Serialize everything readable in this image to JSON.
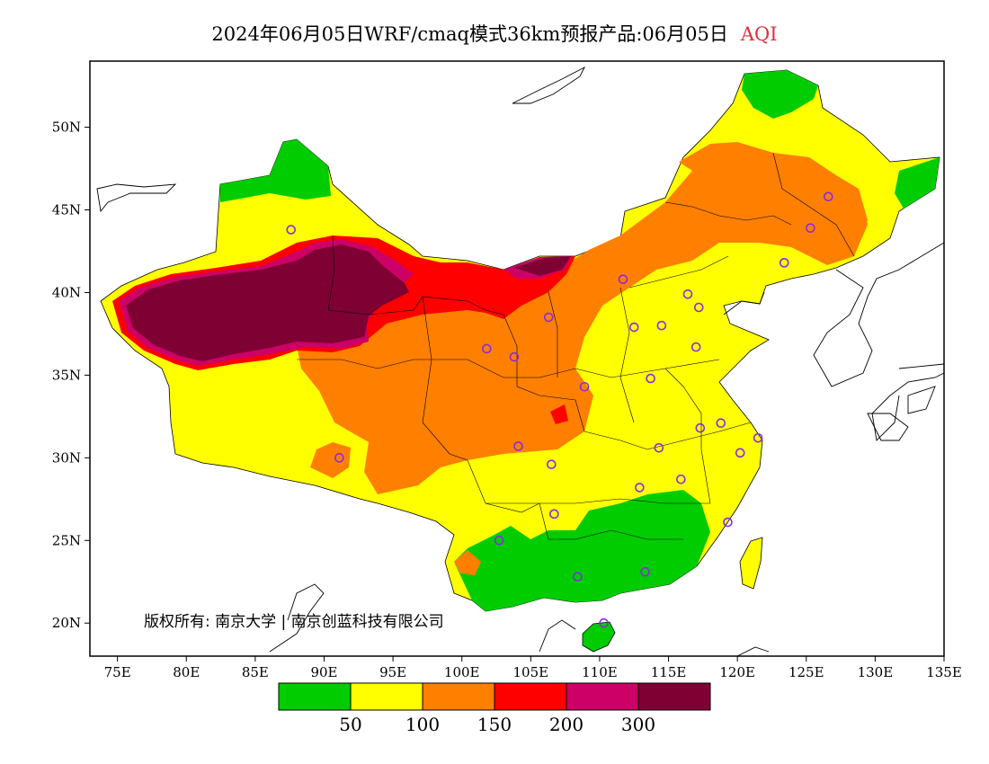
{
  "title": {
    "main": "2024年06月05日WRF/cmaq模式36km预报产品:06月05日",
    "variable": "AQI"
  },
  "map": {
    "lon_range": [
      73,
      135
    ],
    "lat_range": [
      18,
      54
    ],
    "lon_ticks": [
      "75E",
      "80E",
      "85E",
      "90E",
      "95E",
      "100E",
      "105E",
      "110E",
      "115E",
      "120E",
      "125E",
      "130E",
      "135E"
    ],
    "lat_ticks": [
      "50N",
      "45N",
      "40N",
      "35N",
      "30N",
      "25N",
      "20N"
    ],
    "copyright": "版权所有: 南京大学 | 南京创蓝科技有限公司"
  },
  "legend": {
    "colors": [
      "#00cc00",
      "#ffff00",
      "#ff7f00",
      "#ff0000",
      "#cc0066",
      "#7f0033"
    ],
    "labels": [
      "50",
      "100",
      "150",
      "200",
      "300"
    ]
  },
  "stations": [
    [
      87.6,
      43.8
    ],
    [
      91.1,
      30.0
    ],
    [
      101.8,
      36.6
    ],
    [
      103.8,
      36.1
    ],
    [
      106.3,
      38.5
    ],
    [
      104.1,
      30.7
    ],
    [
      106.5,
      29.6
    ],
    [
      106.7,
      26.6
    ],
    [
      102.7,
      25.0
    ],
    [
      108.4,
      22.8
    ],
    [
      110.3,
      20.0
    ],
    [
      111.7,
      40.8
    ],
    [
      112.5,
      37.9
    ],
    [
      108.9,
      34.3
    ],
    [
      113.7,
      34.8
    ],
    [
      114.5,
      38.0
    ],
    [
      116.4,
      39.9
    ],
    [
      117.2,
      39.1
    ],
    [
      117.0,
      36.7
    ],
    [
      114.3,
      30.6
    ],
    [
      112.9,
      28.2
    ],
    [
      115.9,
      28.7
    ],
    [
      117.3,
      31.8
    ],
    [
      118.8,
      32.1
    ],
    [
      120.2,
      30.3
    ],
    [
      121.5,
      31.2
    ],
    [
      119.3,
      26.1
    ],
    [
      113.3,
      23.1
    ],
    [
      123.4,
      41.8
    ],
    [
      125.3,
      43.9
    ],
    [
      126.6,
      45.8
    ]
  ]
}
